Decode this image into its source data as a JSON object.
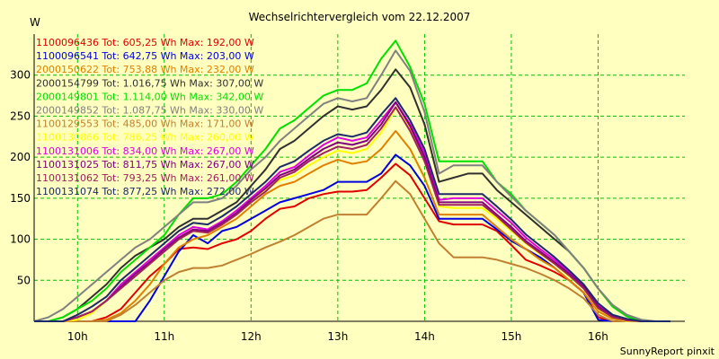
{
  "chart_data": {
    "type": "line",
    "title": "Wechselrichtervergleich vom 22.12.2007",
    "ylabel": "W",
    "xlabel": "",
    "footer": "SunnyReport pinxit",
    "ylim": [
      0,
      350
    ],
    "xlim": [
      9.5,
      17.0
    ],
    "yticks": [
      50,
      100,
      150,
      200,
      250,
      300
    ],
    "xticks": [
      {
        "value": 10,
        "label": "10h"
      },
      {
        "value": 11,
        "label": "11h"
      },
      {
        "value": 12,
        "label": "12h"
      },
      {
        "value": 13,
        "label": "13h"
      },
      {
        "value": 14,
        "label": "14h"
      },
      {
        "value": 15,
        "label": "15h"
      },
      {
        "value": 16,
        "label": "16h"
      }
    ],
    "grid": true,
    "legend_position": "top-left",
    "x": [
      9.5,
      9.6667,
      9.8333,
      10.0,
      10.1667,
      10.3333,
      10.5,
      10.6667,
      10.8333,
      11.0,
      11.1667,
      11.3333,
      11.5,
      11.6667,
      11.8333,
      12.0,
      12.1667,
      12.3333,
      12.5,
      12.6667,
      12.8333,
      13.0,
      13.1667,
      13.3333,
      13.5,
      13.6667,
      13.8333,
      14.0,
      14.1667,
      14.3333,
      14.5,
      14.6667,
      14.8333,
      15.0,
      15.1667,
      15.3333,
      15.5,
      15.6667,
      15.8333,
      16.0,
      16.1667,
      16.3333,
      16.5,
      16.6667,
      16.8333
    ],
    "series": [
      {
        "name": "1100096436",
        "legend": "1100096436 Tot: 605,25 Wh Max: 192,00 W",
        "color": "#e00000",
        "values": [
          0,
          0,
          0,
          0,
          0,
          5,
          15,
          35,
          55,
          70,
          88,
          90,
          88,
          95,
          100,
          110,
          125,
          137,
          140,
          150,
          155,
          158,
          158,
          160,
          175,
          192,
          178,
          150,
          122,
          118,
          118,
          118,
          110,
          93,
          75,
          68,
          60,
          50,
          35,
          5,
          0,
          0,
          0,
          0,
          0
        ]
      },
      {
        "name": "1100096541",
        "legend": "1100096541 Tot: 642,75 Wh Max: 203,00 W",
        "color": "#0000e0",
        "values": [
          0,
          0,
          0,
          0,
          0,
          0,
          0,
          0,
          25,
          55,
          85,
          105,
          95,
          110,
          115,
          125,
          135,
          145,
          150,
          155,
          160,
          170,
          170,
          170,
          180,
          203,
          190,
          165,
          125,
          125,
          125,
          125,
          112,
          98,
          88,
          78,
          65,
          50,
          35,
          2,
          0,
          0,
          0,
          0,
          0
        ]
      },
      {
        "name": "2000150622",
        "legend": "2000150622 Tot: 753,88 Wh Max: 232,00 W",
        "color": "#e08000",
        "values": [
          0,
          0,
          0,
          0,
          0,
          2,
          10,
          25,
          45,
          70,
          90,
          100,
          105,
          115,
          125,
          140,
          155,
          165,
          170,
          180,
          190,
          197,
          192,
          195,
          210,
          232,
          210,
          175,
          130,
          130,
          130,
          130,
          115,
          100,
          88,
          75,
          65,
          50,
          35,
          12,
          3,
          0,
          0,
          0,
          0
        ]
      },
      {
        "name": "2000154799",
        "legend": "2000154799 Tot: 1.016,75 Wh Max: 307,00 W",
        "color": "#303030",
        "values": [
          0,
          0,
          5,
          15,
          30,
          45,
          65,
          80,
          90,
          100,
          115,
          125,
          125,
          135,
          145,
          165,
          185,
          210,
          220,
          235,
          250,
          262,
          258,
          262,
          282,
          307,
          285,
          240,
          170,
          175,
          180,
          180,
          160,
          145,
          130,
          115,
          100,
          85,
          65,
          40,
          18,
          6,
          0,
          0,
          0
        ]
      },
      {
        "name": "2000149801",
        "legend": "2000149801 Tot: 1.114,00 Wh Max: 342,00 W",
        "color": "#00e000",
        "values": [
          0,
          0,
          5,
          15,
          25,
          40,
          60,
          75,
          90,
          105,
          130,
          150,
          150,
          155,
          170,
          190,
          210,
          235,
          245,
          260,
          275,
          282,
          282,
          290,
          320,
          342,
          310,
          265,
          195,
          195,
          195,
          195,
          170,
          155,
          135,
          120,
          105,
          85,
          65,
          40,
          18,
          6,
          0,
          0,
          0
        ]
      },
      {
        "name": "2000149852",
        "legend": "2000149852 Tot: 1.087,75 Wh Max: 330,00 W",
        "color": "#808080",
        "values": [
          0,
          5,
          15,
          30,
          45,
          60,
          75,
          90,
          100,
          115,
          130,
          145,
          145,
          150,
          165,
          185,
          200,
          220,
          235,
          250,
          265,
          272,
          268,
          272,
          300,
          330,
          305,
          255,
          180,
          190,
          190,
          190,
          170,
          152,
          135,
          120,
          105,
          85,
          65,
          40,
          20,
          8,
          2,
          0,
          0
        ]
      },
      {
        "name": "1100129553",
        "legend": "1100129553 Tot: 485,00 Wh Max: 171,00 W",
        "color": "#c08030",
        "values": [
          0,
          0,
          0,
          0,
          0,
          0,
          8,
          20,
          35,
          50,
          60,
          65,
          65,
          68,
          75,
          82,
          90,
          97,
          105,
          115,
          125,
          130,
          130,
          130,
          150,
          171,
          155,
          125,
          95,
          78,
          78,
          78,
          75,
          70,
          65,
          58,
          50,
          40,
          28,
          8,
          0,
          0,
          0,
          0,
          0
        ]
      },
      {
        "name": "1100130866",
        "legend": "1100130866 Tot: 786,25 Wh Max: 260,00 W",
        "color": "#ffff00",
        "values": [
          0,
          0,
          0,
          2,
          10,
          25,
          40,
          55,
          70,
          85,
          100,
          110,
          108,
          118,
          130,
          145,
          160,
          172,
          178,
          190,
          200,
          208,
          205,
          210,
          230,
          260,
          235,
          200,
          140,
          138,
          138,
          138,
          125,
          110,
          95,
          82,
          70,
          55,
          40,
          15,
          5,
          0,
          0,
          0,
          0
        ]
      },
      {
        "name": "1100131006",
        "legend": "1100131006 Tot: 834,00 Wh Max: 267,00 W",
        "color": "#e000e0",
        "values": [
          0,
          0,
          0,
          5,
          12,
          25,
          45,
          60,
          75,
          90,
          105,
          115,
          112,
          122,
          135,
          150,
          165,
          182,
          188,
          202,
          215,
          224,
          220,
          224,
          245,
          267,
          240,
          205,
          148,
          150,
          150,
          150,
          135,
          120,
          102,
          88,
          75,
          60,
          45,
          20,
          6,
          2,
          0,
          0,
          0
        ]
      },
      {
        "name": "1100131025",
        "legend": "1100131025 Tot: 811,75 Wh Max: 267,00 W",
        "color": "#800080",
        "values": [
          0,
          0,
          0,
          5,
          12,
          25,
          42,
          58,
          72,
          88,
          102,
          112,
          110,
          120,
          132,
          148,
          162,
          178,
          185,
          198,
          210,
          218,
          215,
          220,
          240,
          267,
          238,
          200,
          145,
          145,
          145,
          145,
          130,
          115,
          98,
          85,
          72,
          58,
          42,
          18,
          6,
          2,
          0,
          0,
          0
        ]
      },
      {
        "name": "1100131062",
        "legend": "1100131062 Tot: 793,25 Wh Max: 261,00 W",
        "color": "#a02060",
        "values": [
          0,
          0,
          0,
          5,
          12,
          25,
          40,
          55,
          70,
          85,
          100,
          110,
          108,
          118,
          130,
          145,
          158,
          175,
          182,
          195,
          205,
          213,
          210,
          215,
          235,
          261,
          232,
          195,
          142,
          142,
          142,
          142,
          128,
          112,
          96,
          83,
          70,
          56,
          40,
          16,
          5,
          1,
          0,
          0,
          0
        ]
      },
      {
        "name": "1100131074",
        "legend": "1100131074 Tot: 877,25 Wh Max: 272,00 W",
        "color": "#1a2a6a",
        "values": [
          0,
          0,
          0,
          8,
          18,
          30,
          50,
          65,
          80,
          95,
          110,
          120,
          118,
          128,
          140,
          155,
          170,
          188,
          195,
          208,
          220,
          228,
          225,
          230,
          252,
          272,
          245,
          210,
          155,
          155,
          155,
          155,
          140,
          124,
          106,
          92,
          78,
          62,
          45,
          22,
          8,
          3,
          0,
          0,
          0
        ]
      }
    ]
  }
}
